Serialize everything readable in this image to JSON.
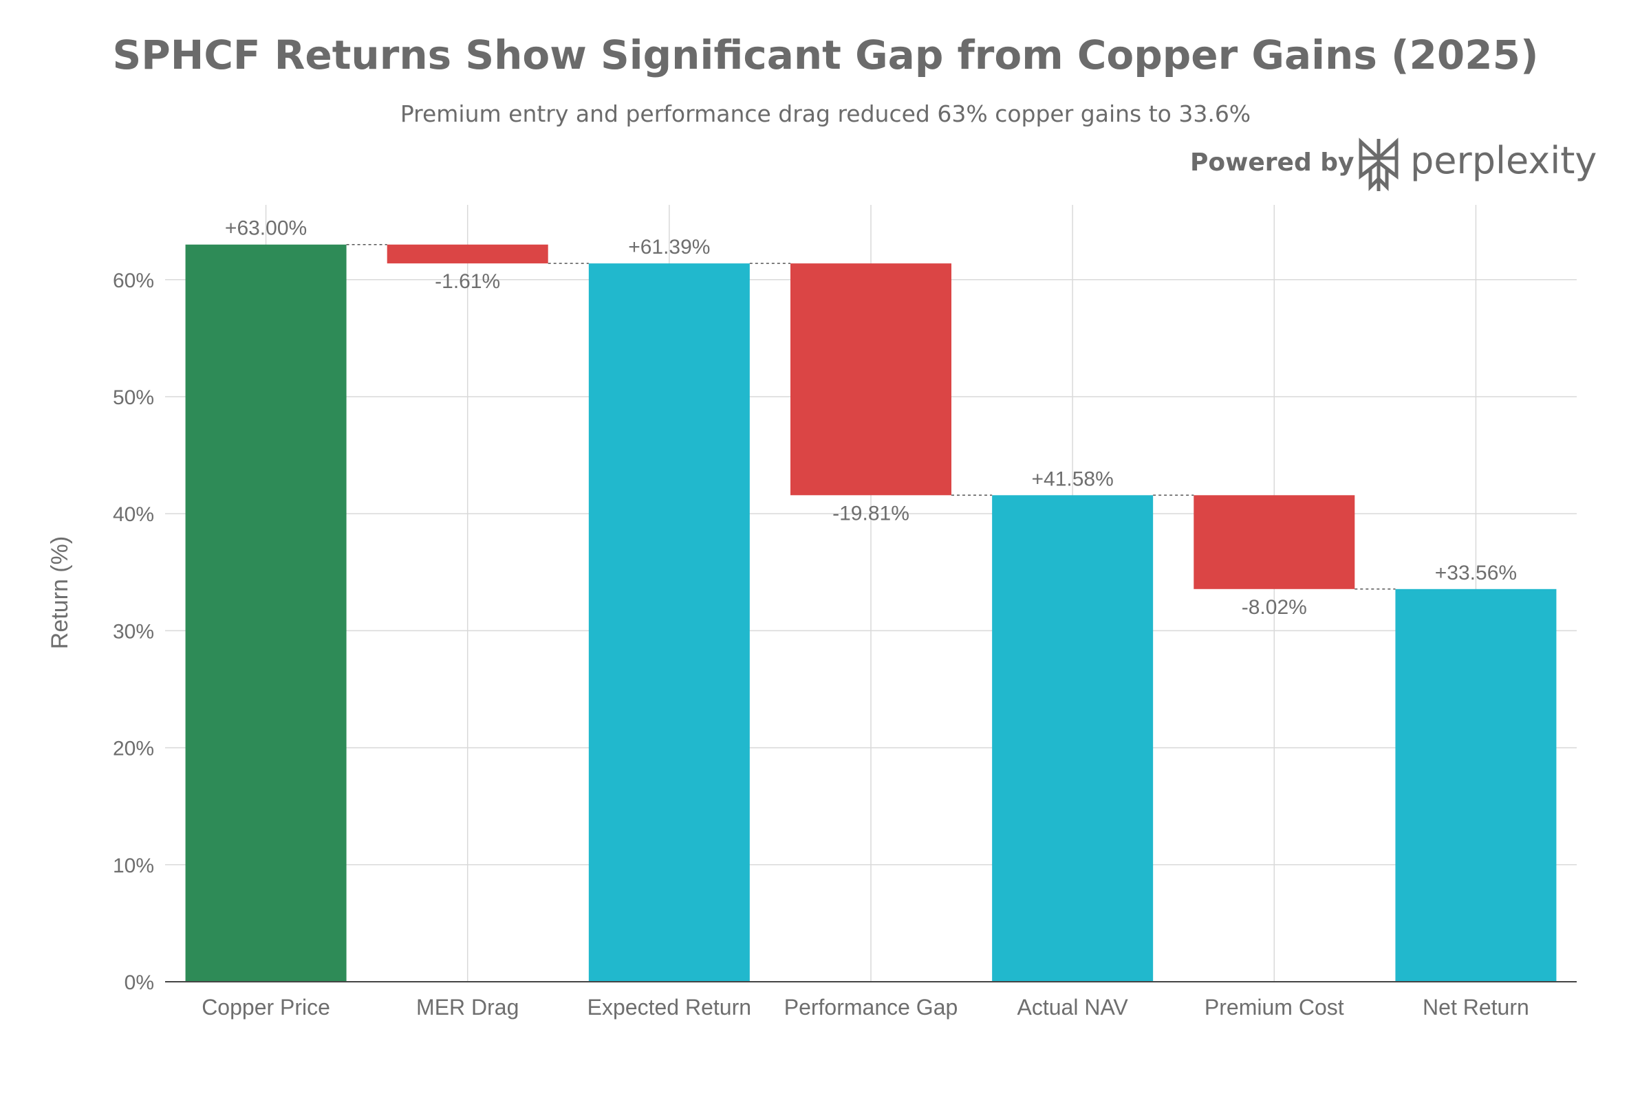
{
  "header": {
    "title": "SPHCF Returns Show Significant Gap from Copper Gains (2025)",
    "subtitle": "Premium entry and performance drag reduced 63% copper gains to 33.6%"
  },
  "branding": {
    "powered_by": "Powered by",
    "name": "perplexity",
    "icon": "perplexity-logo-icon"
  },
  "colors": {
    "total_start": "#2e8b57",
    "decrease": "#db4545",
    "subtotal": "#21b8cd",
    "grid": "#d9d9d9",
    "text": "#6e6e6e"
  },
  "chart_data": {
    "type": "waterfall",
    "title": "SPHCF Returns Show Significant Gap from Copper Gains (2025)",
    "subtitle": "Premium entry and performance drag reduced 63% copper gains to 33.6%",
    "xlabel": "",
    "ylabel": "Return (%)",
    "ylim": [
      0,
      66
    ],
    "yticks": [
      0,
      10,
      20,
      30,
      40,
      50,
      60
    ],
    "ytick_labels": [
      "0%",
      "10%",
      "20%",
      "30%",
      "40%",
      "50%",
      "60%"
    ],
    "grid": true,
    "categories": [
      "Copper Price",
      "MER Drag",
      "Expected Return",
      "Performance Gap",
      "Actual NAV",
      "Premium Cost",
      "Net Return"
    ],
    "measures": [
      "absolute",
      "relative",
      "total",
      "relative",
      "total",
      "relative",
      "total"
    ],
    "values": [
      63.0,
      -1.61,
      61.39,
      -19.81,
      41.58,
      -8.02,
      33.56
    ],
    "labels": [
      "+63.00%",
      "-1.61%",
      "+61.39%",
      "-19.81%",
      "+41.58%",
      "-8.02%",
      "+33.56%"
    ]
  }
}
